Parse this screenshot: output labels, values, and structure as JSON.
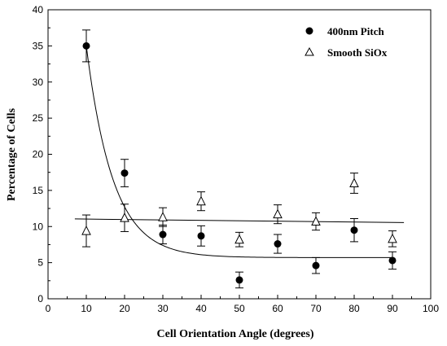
{
  "chart_data": {
    "type": "scatter",
    "title": "",
    "xlabel": "Cell Orientation Angle (degrees)",
    "ylabel": "Percentage of Cells",
    "xlim": [
      0,
      100
    ],
    "ylim": [
      0,
      40
    ],
    "xticks": [
      0,
      10,
      20,
      30,
      40,
      50,
      60,
      70,
      80,
      90,
      100
    ],
    "yticks": [
      0,
      5,
      10,
      15,
      20,
      25,
      30,
      35,
      40
    ],
    "grid": false,
    "legend_position": "top-right",
    "series": [
      {
        "name": "400nm Pitch",
        "marker": "filled-circle",
        "color": "#000000",
        "x": [
          10,
          20,
          30,
          40,
          50,
          60,
          70,
          80,
          90
        ],
        "y": [
          35.0,
          17.4,
          8.9,
          8.7,
          2.6,
          7.6,
          4.6,
          9.5,
          5.3
        ],
        "error": [
          2.2,
          1.9,
          1.3,
          1.4,
          1.1,
          1.3,
          1.1,
          1.6,
          1.2
        ],
        "fit": {
          "kind": "exponential-decay",
          "x_range": [
            10,
            90
          ],
          "y0": 5.7,
          "A": 29.3,
          "t": 7.0
        }
      },
      {
        "name": "Smooth SiOx",
        "marker": "open-triangle",
        "color": "#000000",
        "x": [
          10,
          20,
          30,
          40,
          50,
          60,
          70,
          80,
          90
        ],
        "y": [
          9.4,
          11.2,
          11.3,
          13.5,
          8.2,
          11.7,
          10.7,
          16.0,
          8.3
        ],
        "error": [
          2.2,
          1.9,
          1.3,
          1.3,
          1.0,
          1.3,
          1.2,
          1.4,
          1.1
        ],
        "fit": {
          "kind": "linear",
          "x_range": [
            7,
            93
          ],
          "y_start": 11.05,
          "y_end": 10.55
        }
      }
    ]
  }
}
